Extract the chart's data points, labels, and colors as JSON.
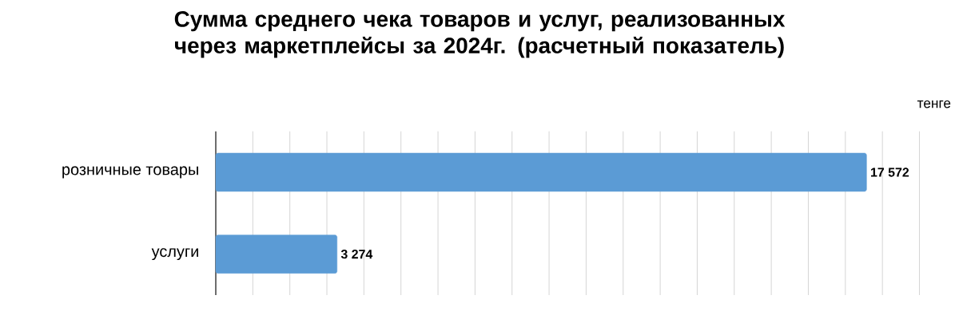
{
  "chart_data": {
    "type": "bar",
    "orientation": "horizontal",
    "title": "Сумма среднего чека товаров и услуг, реализованных через маркетплейсы за 2024г. (расчетный показатель)",
    "annotations": [
      "тенге"
    ],
    "categories": [
      "розничные товары",
      "услуги"
    ],
    "values": [
      17572,
      3274
    ],
    "value_labels": [
      "17 572",
      "3 274"
    ],
    "color": "#5b9bd5",
    "grid": "x",
    "tick_labels": "y"
  }
}
